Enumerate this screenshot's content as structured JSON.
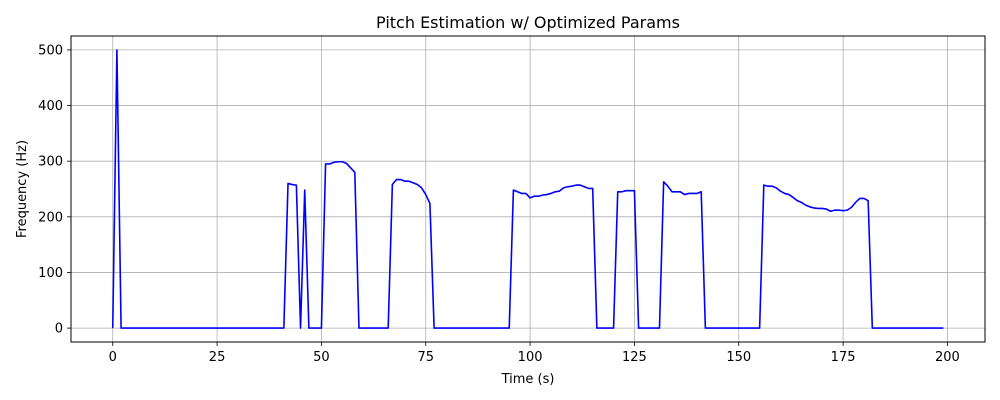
{
  "chart_data": {
    "type": "line",
    "title": "Pitch Estimation w/ Optimized Params",
    "xlabel": "Time (s)",
    "ylabel": "Frequency (Hz)",
    "xlim": [
      -10,
      209
    ],
    "ylim": [
      -25,
      525
    ],
    "xticks": [
      0,
      25,
      50,
      75,
      100,
      125,
      150,
      175,
      200
    ],
    "yticks": [
      0,
      100,
      200,
      300,
      400,
      500
    ],
    "grid": true,
    "legend": "none",
    "series": [
      {
        "color": "#0000ff",
        "x": [
          0,
          1,
          2,
          41,
          42,
          43,
          44,
          45,
          46,
          47,
          50,
          51,
          52,
          53,
          54,
          55,
          56,
          57,
          58,
          59,
          66,
          67,
          68,
          69,
          70,
          71,
          72,
          73,
          74,
          75,
          76,
          77,
          95,
          96,
          97,
          98,
          99,
          100,
          101,
          102,
          103,
          104,
          105,
          106,
          107,
          108,
          109,
          110,
          111,
          112,
          113,
          114,
          115,
          116,
          120,
          121,
          122,
          123,
          124,
          125,
          126,
          131,
          132,
          133,
          134,
          135,
          136,
          137,
          138,
          139,
          140,
          141,
          142,
          155,
          156,
          157,
          158,
          159,
          160,
          161,
          162,
          163,
          164,
          165,
          166,
          167,
          168,
          169,
          170,
          171,
          172,
          173,
          174,
          175,
          176,
          177,
          178,
          179,
          180,
          181,
          182,
          199
        ],
        "y": [
          0,
          500,
          0,
          0,
          260,
          258,
          257,
          0,
          248,
          0,
          0,
          295,
          295,
          298,
          299,
          299,
          296,
          288,
          280,
          0,
          0,
          258,
          267,
          267,
          264,
          264,
          261,
          258,
          252,
          240,
          224,
          0,
          0,
          248,
          245,
          242,
          242,
          234,
          237,
          237,
          239,
          240,
          242,
          245,
          246,
          252,
          254,
          255,
          257,
          257,
          254,
          251,
          251,
          0,
          0,
          245,
          245,
          247,
          247,
          247,
          0,
          0,
          263,
          255,
          245,
          245,
          245,
          240,
          242,
          242,
          242,
          245,
          0,
          0,
          257,
          255,
          255,
          252,
          246,
          242,
          240,
          235,
          229,
          226,
          221,
          218,
          216,
          215,
          215,
          214,
          210,
          212,
          212,
          211,
          212,
          217,
          226,
          233,
          233,
          229,
          0,
          0
        ]
      }
    ]
  }
}
